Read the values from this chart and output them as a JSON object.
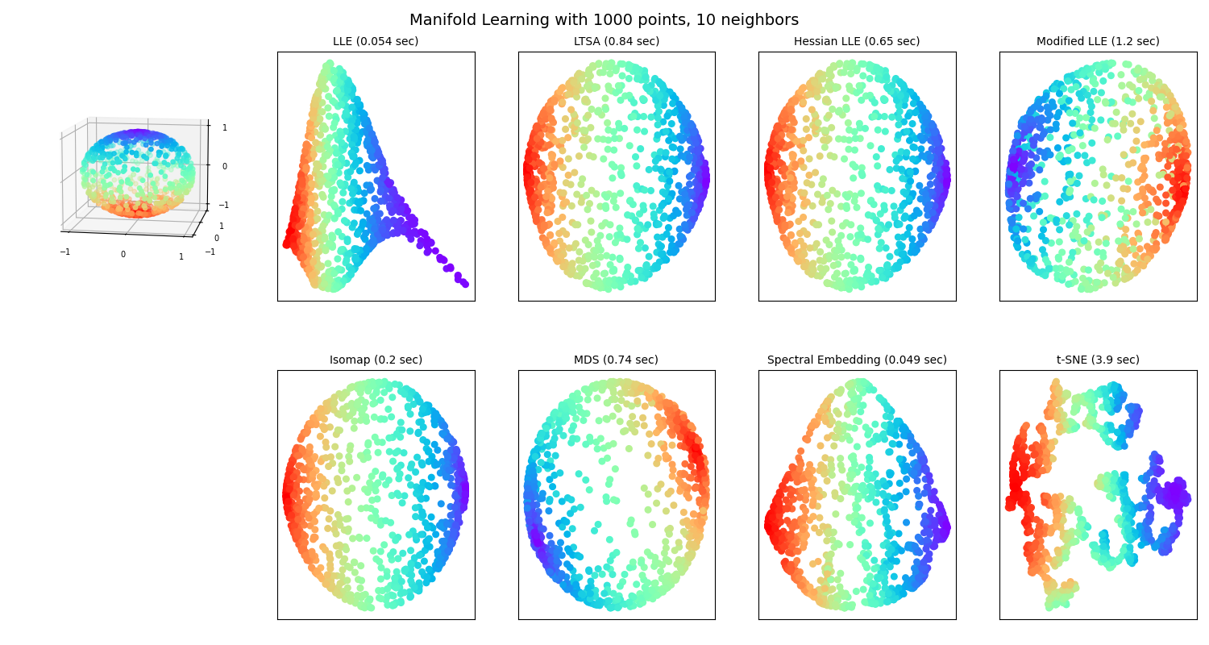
{
  "title": "Manifold Learning with 1000 points, 10 neighbors",
  "n_points": 1000,
  "n_neighbors": 10,
  "random_state": 0,
  "methods": [
    {
      "name": "LLE",
      "time": "0.054",
      "row": 0,
      "col": 1
    },
    {
      "name": "LTSA",
      "time": "0.84",
      "row": 0,
      "col": 2
    },
    {
      "name": "Hessian LLE",
      "time": "0.65",
      "row": 0,
      "col": 3
    },
    {
      "name": "Modified LLE",
      "time": "1.2",
      "row": 0,
      "col": 4
    },
    {
      "name": "Isomap",
      "time": "0.2",
      "row": 1,
      "col": 1
    },
    {
      "name": "MDS",
      "time": "0.74",
      "row": 1,
      "col": 2
    },
    {
      "name": "Spectral Embedding",
      "time": "0.049",
      "row": 1,
      "col": 3
    },
    {
      "name": "t-SNE",
      "time": "3.9",
      "row": 1,
      "col": 4
    }
  ],
  "colormap": "rainbow",
  "scatter_size": 30,
  "scatter_size_3d": 15,
  "background_color": "white",
  "title_fontsize": 14,
  "subtitle_fontsize": 10,
  "ax3d_elev": 10,
  "ax3d_azim": -80
}
